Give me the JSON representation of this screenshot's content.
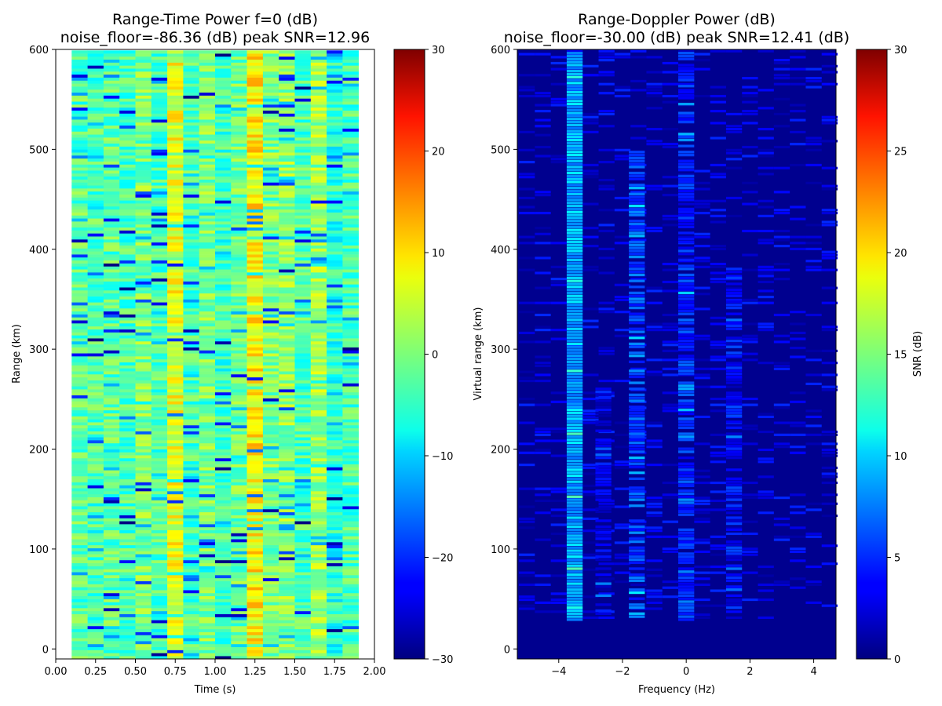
{
  "chart_data": [
    {
      "type": "heatmap",
      "title": "Range-Time Power f=0 (dB)",
      "subtitle": "noise_floor=-86.36 (dB) peak SNR=12.96",
      "xlabel": "Time (s)",
      "ylabel": "Range (km)",
      "xlim": [
        0.0,
        2.0
      ],
      "ylim": [
        -10,
        600
      ],
      "x_ticks": [
        "0.00",
        "0.25",
        "0.50",
        "0.75",
        "1.00",
        "1.25",
        "1.50",
        "1.75",
        "2.00"
      ],
      "y_ticks": [
        "0",
        "100",
        "200",
        "300",
        "400",
        "500",
        "600"
      ],
      "x_columns": [
        0.1,
        0.2,
        0.3,
        0.4,
        0.5,
        0.6,
        0.7,
        0.8,
        0.9,
        1.0,
        1.1,
        1.2,
        1.3,
        1.4,
        1.5,
        1.6,
        1.7,
        1.8
      ],
      "column_width": 0.1,
      "range_extent": [
        -10,
        598
      ],
      "column_mean_db": [
        -2,
        -3,
        -2,
        -3,
        0,
        -3,
        6,
        -3,
        0,
        -4,
        -1,
        8,
        0,
        1,
        -3,
        2,
        -5,
        -3
      ],
      "colorbar": {
        "label": "",
        "range": [
          -30,
          30
        ],
        "ticks": [
          "30",
          "20",
          "10",
          "0",
          "−10",
          "−20",
          "−30"
        ]
      },
      "colormap": "jet"
    },
    {
      "type": "heatmap",
      "title": "Range-Doppler Power (dB)",
      "subtitle": "noise_floor=-30.00 (dB) peak SNR=12.41 (dB)",
      "xlabel": "Frequency (Hz)",
      "ylabel": "Virtual range (km)",
      "xlim": [
        -5.3,
        4.7
      ],
      "ylim": [
        -10,
        600
      ],
      "x_ticks": [
        "−4",
        "−2",
        "0",
        "2",
        "4"
      ],
      "y_ticks": [
        "0",
        "100",
        "200",
        "300",
        "400",
        "500",
        "600"
      ],
      "signal_bands": [
        {
          "freq": -3.5,
          "width": 0.5,
          "range": [
            28,
            598
          ],
          "level_db": 9
        },
        {
          "freq": -1.55,
          "width": 0.5,
          "range": [
            28,
            500
          ],
          "level_db": 6
        },
        {
          "freq": -2.6,
          "width": 0.5,
          "range": [
            28,
            260
          ],
          "level_db": 3
        },
        {
          "freq": 0.0,
          "width": 0.5,
          "range": [
            28,
            598
          ],
          "level_db": 5
        },
        {
          "freq": 1.5,
          "width": 0.5,
          "range": [
            40,
            380
          ],
          "level_db": 4
        }
      ],
      "colorbar": {
        "label": "SNR (dB)",
        "range": [
          0,
          30
        ],
        "ticks": [
          "30",
          "25",
          "20",
          "15",
          "10",
          "5",
          "0"
        ]
      },
      "colormap": "jet"
    }
  ]
}
